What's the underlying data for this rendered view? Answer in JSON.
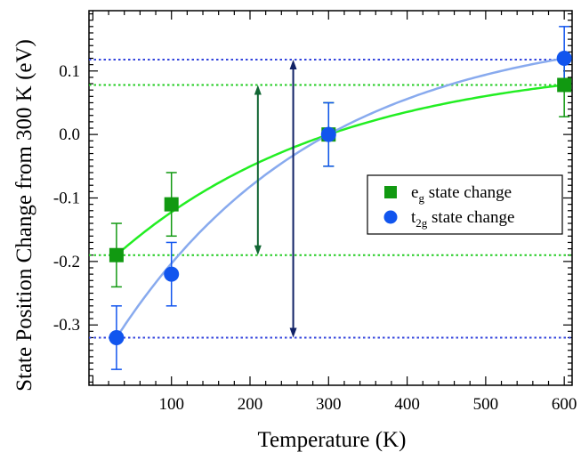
{
  "chart_data": {
    "type": "scatter",
    "xlabel": "Temperature (K)",
    "ylabel": "State Position Change from 300 K (eV)",
    "xlim": [
      -5,
      610
    ],
    "ylim": [
      -0.395,
      0.195
    ],
    "xticks": [
      100,
      200,
      300,
      400,
      500,
      600
    ],
    "xtick_labels": [
      "100",
      "200",
      "300",
      "400",
      "500",
      "600"
    ],
    "yticks": [
      -0.3,
      -0.2,
      -0.1,
      0.0,
      0.1
    ],
    "ytick_labels": [
      "-0.3",
      "-0.2",
      "-0.1",
      "0.0",
      "0.1"
    ],
    "grid": false,
    "legend_position": "right",
    "series": [
      {
        "name": "e",
        "subscript": "g",
        "suffix": " state change",
        "marker": "square",
        "color": "#119911",
        "fit_color": "#22ee22",
        "x": [
          30,
          100,
          300,
          600
        ],
        "y": [
          -0.19,
          -0.11,
          0.0,
          0.078
        ],
        "err": [
          0.05,
          0.05,
          0.05,
          0.05
        ],
        "fit_line": true,
        "ref_lines": [
          0.078,
          -0.19
        ],
        "arrow": {
          "x": 210,
          "from": -0.19,
          "to": 0.078,
          "color": "#116633"
        }
      },
      {
        "name": "t",
        "subscript": "2g",
        "suffix": " state change",
        "marker": "circle",
        "color": "#1155ee",
        "fit_color": "#88aaee",
        "x": [
          30,
          100,
          300,
          600
        ],
        "y": [
          -0.32,
          -0.22,
          0.0,
          0.12
        ],
        "err": [
          0.05,
          0.05,
          0.05,
          0.05
        ],
        "fit_line": true,
        "ref_lines": [
          0.118,
          -0.32
        ],
        "arrow": {
          "x": 255,
          "from": -0.32,
          "to": 0.118,
          "color": "#112266"
        }
      }
    ]
  }
}
